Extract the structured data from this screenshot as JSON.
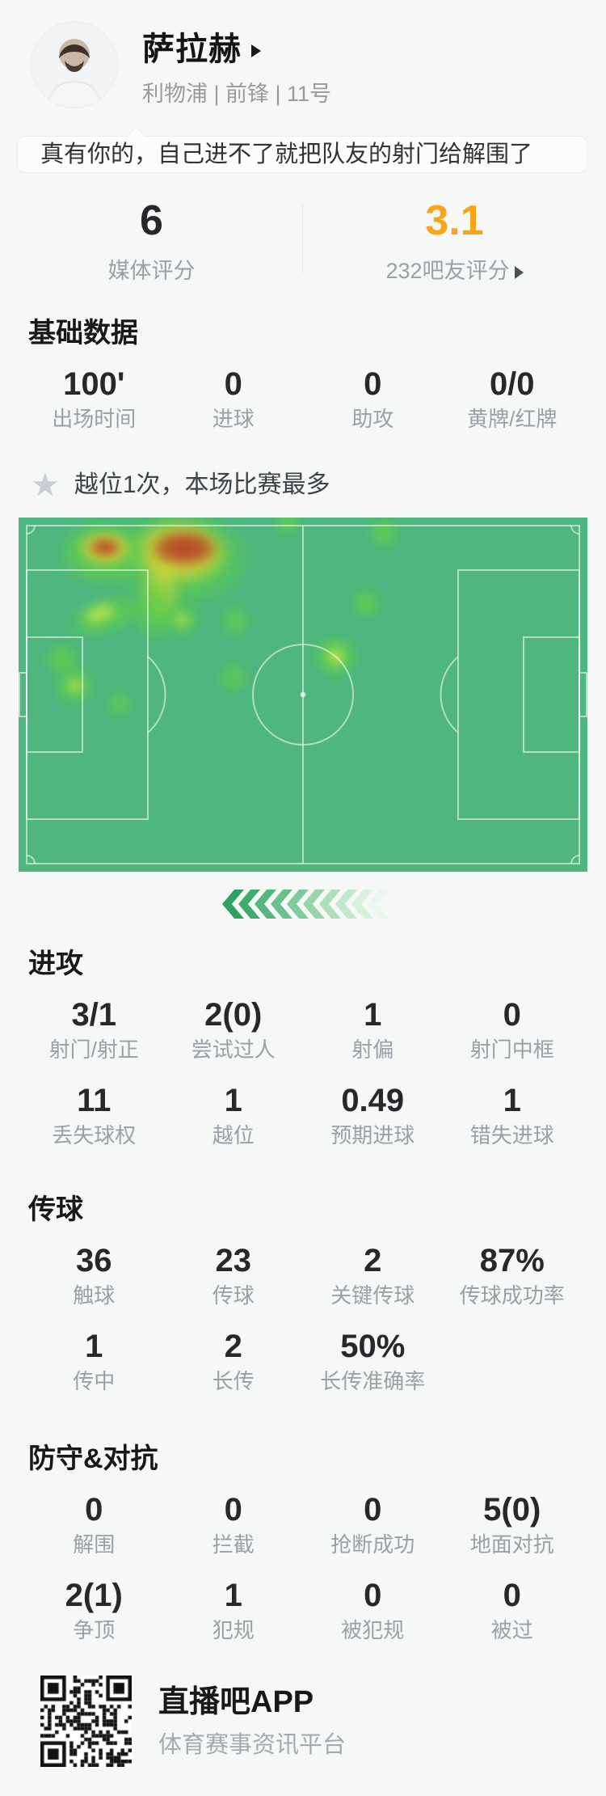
{
  "header": {
    "player_name": "萨拉赫",
    "team_position": "利物浦 | 前锋 | 11号"
  },
  "comment_bubble": {
    "text": "真有你的，自己进不了就把队友的射门给解围了"
  },
  "ratings": {
    "media_score": "6",
    "media_label": "媒体评分",
    "fan_score": "3.1",
    "fan_label": "232吧友评分"
  },
  "highlight_note": {
    "text": "越位1次，本场比赛最多"
  },
  "sections": [
    {
      "title": "基础数据",
      "rows": [
        [
          {
            "value": "100'",
            "label": "出场时间"
          },
          {
            "value": "0",
            "label": "进球"
          },
          {
            "value": "0",
            "label": "助攻"
          },
          {
            "value": "0/0",
            "label": "黄牌/红牌"
          }
        ]
      ]
    },
    {
      "title": "进攻",
      "rows": [
        [
          {
            "value": "3/1",
            "label": "射门/射正"
          },
          {
            "value": "2(0)",
            "label": "尝试过人"
          },
          {
            "value": "1",
            "label": "射偏"
          },
          {
            "value": "0",
            "label": "射门中框"
          }
        ],
        [
          {
            "value": "11",
            "label": "丢失球权"
          },
          {
            "value": "1",
            "label": "越位"
          },
          {
            "value": "0.49",
            "label": "预期进球"
          },
          {
            "value": "1",
            "label": "错失进球"
          }
        ]
      ]
    },
    {
      "title": "传球",
      "rows": [
        [
          {
            "value": "36",
            "label": "触球"
          },
          {
            "value": "23",
            "label": "传球"
          },
          {
            "value": "2",
            "label": "关键传球"
          },
          {
            "value": "87%",
            "label": "传球成功率"
          }
        ],
        [
          {
            "value": "1",
            "label": "传中"
          },
          {
            "value": "2",
            "label": "长传"
          },
          {
            "value": "50%",
            "label": "长传准确率"
          }
        ]
      ]
    },
    {
      "title": "防守&对抗",
      "rows": [
        [
          {
            "value": "0",
            "label": "解围"
          },
          {
            "value": "0",
            "label": "拦截"
          },
          {
            "value": "0",
            "label": "抢断成功"
          },
          {
            "value": "5(0)",
            "label": "地面对抗"
          }
        ],
        [
          {
            "value": "2(1)",
            "label": "争顶"
          },
          {
            "value": "1",
            "label": "犯规"
          },
          {
            "value": "0",
            "label": "被犯规"
          },
          {
            "value": "0",
            "label": "被过"
          }
        ]
      ]
    }
  ],
  "footer": {
    "app_name": "直播吧APP",
    "tagline": "体育赛事资讯平台"
  },
  "colors": {
    "accent_orange": "#F9A51A",
    "field_green": "#4EB67E",
    "page_bg": "#F6F7F7",
    "chevron_greens": [
      "#2FA163",
      "#3EAC71",
      "#52B77F",
      "#68C18E",
      "#7FCB9D",
      "#96D5AC",
      "#ADDFBC",
      "#C3E8CC",
      "#D8F0DC",
      "#EAF7EE"
    ]
  }
}
